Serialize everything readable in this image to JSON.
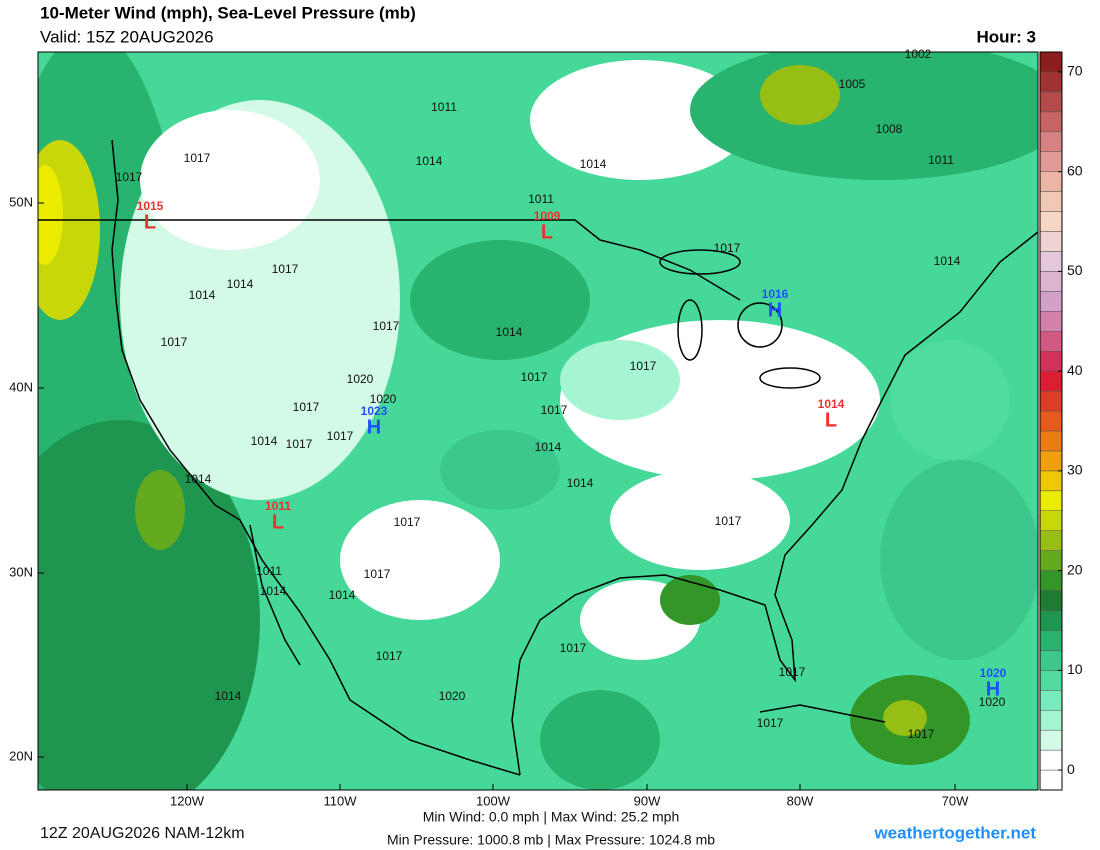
{
  "header": {
    "title": "10-Meter Wind (mph), Sea-Level Pressure (mb)",
    "valid": "Valid: 15Z 20AUG2026",
    "hour": "Hour: 3"
  },
  "map": {
    "lat_labels": [
      "50N",
      "40N",
      "30N",
      "20N"
    ],
    "lon_labels": [
      "120W",
      "110W",
      "100W",
      "90W",
      "80W",
      "70W"
    ],
    "pressure_centers": [
      {
        "label": "L",
        "value": 1015
      },
      {
        "label": "L",
        "value": 1009
      },
      {
        "label": "H",
        "value": 1016
      },
      {
        "label": "H",
        "value": 1023
      },
      {
        "label": "L",
        "value": 1014
      },
      {
        "label": "L",
        "value": 1011
      },
      {
        "label": "H",
        "value": 1020
      }
    ],
    "isobar_labels": [
      1002,
      1005,
      1008,
      1011,
      1011,
      1017,
      1014,
      1014,
      1017,
      1011,
      1017,
      1014,
      1017,
      1014,
      1014,
      1017,
      1014,
      1017,
      1017,
      1017,
      1020,
      1020,
      1017,
      1017,
      1017,
      1014,
      1017,
      1014,
      1014,
      1014,
      1017,
      1017,
      1011,
      1017,
      1014,
      1014,
      1017,
      1017,
      1017,
      1014,
      1020,
      1020,
      1017,
      1017
    ]
  },
  "colorbar": {
    "lim": [
      -2,
      72
    ],
    "ticks": [
      0,
      10,
      20,
      30,
      40,
      50,
      60,
      70
    ],
    "colors": [
      "#ffffff",
      "#ffffff",
      "#d2fae6",
      "#a5f5d2",
      "#78ebbe",
      "#50dca0",
      "#3cc88c",
      "#28b46e",
      "#1e9650",
      "#1e7d32",
      "#329628",
      "#64aa1e",
      "#96be14",
      "#c8d70a",
      "#ebeb00",
      "#f0c800",
      "#f0a00a",
      "#eb7d14",
      "#e65a1e",
      "#dc3c28",
      "#dc1e32",
      "#d2325a",
      "#d25a82",
      "#d282aa",
      "#d2a0c8",
      "#dcb4d2",
      "#e6c8dc",
      "#f0d2d2",
      "#f5d7c3",
      "#f0c8b4",
      "#ebb4a5",
      "#e19b96",
      "#d78282",
      "#c86464",
      "#b44b4b",
      "#a03232",
      "#8c1e1e"
    ]
  },
  "footer": {
    "run": "12Z 20AUG2026 NAM-12km",
    "wind": "Min Wind:  0.0 mph | Max Wind: 25.2 mph",
    "pressure": "Min Pressure: 1000.8 mb | Max Pressure: 1024.8 mb",
    "site": "weathertogether.net"
  }
}
